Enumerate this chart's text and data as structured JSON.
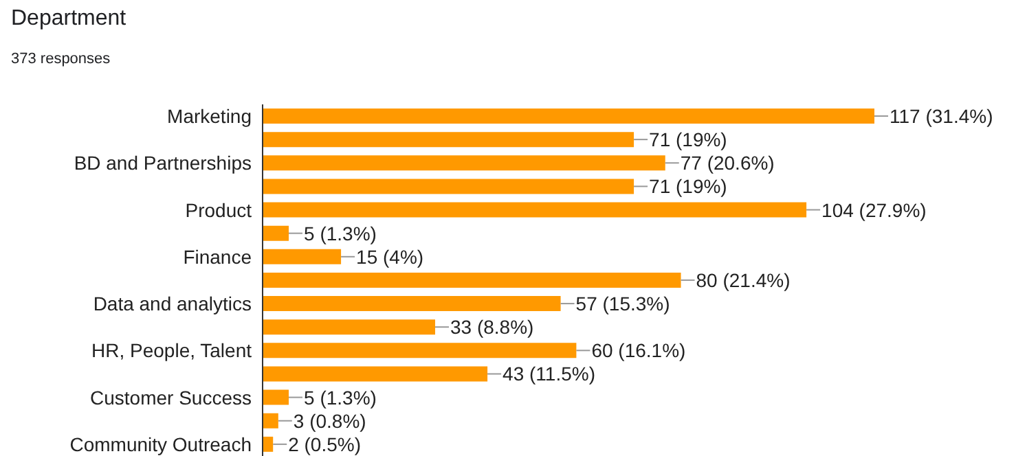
{
  "chart_data": {
    "type": "bar",
    "orientation": "horizontal",
    "title": "Department",
    "subtitle": "373 responses",
    "categories": [
      "Marketing",
      null,
      "BD and Partnerships",
      null,
      "Product",
      null,
      "Finance",
      null,
      "Data and analytics",
      null,
      "HR, People, Talent",
      null,
      "Customer Success",
      null,
      "Community Outreach"
    ],
    "values": [
      117,
      71,
      77,
      71,
      104,
      5,
      15,
      80,
      57,
      33,
      60,
      43,
      5,
      3,
      2
    ],
    "value_labels": [
      "117 (31.4%)",
      "71 (19%)",
      "77 (20.6%)",
      "71 (19%)",
      "104 (27.9%)",
      "5 (1.3%)",
      "15 (4%)",
      "80 (21.4%)",
      "57 (15.3%)",
      "33 (8.8%)",
      "60 (16.1%)",
      "43 (11.5%)",
      "5 (1.3%)",
      "3 (0.8%)",
      "2 (0.5%)"
    ],
    "color": "#ff9900",
    "tick_labels": "y"
  }
}
